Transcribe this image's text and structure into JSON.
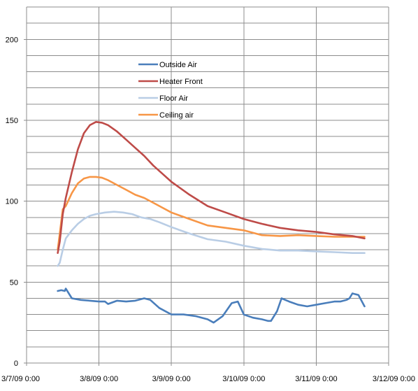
{
  "chart_data": {
    "type": "line",
    "title": "",
    "xlabel": "",
    "ylabel": "",
    "xlim": [
      "3/7/09 0:00",
      "3/12/09 0:00"
    ],
    "ylim": [
      0,
      220
    ],
    "y_ticks": [
      0,
      50,
      100,
      150,
      200
    ],
    "x_tick_labels": [
      "3/7/09 0:00",
      "3/8/09 0:00",
      "3/9/09 0:00",
      "3/10/09 0:00",
      "3/11/09 0:00",
      "3/12/09 0:00"
    ],
    "grid": true,
    "legend_position": "top-center",
    "series": [
      {
        "name": "Outside Air",
        "color": "#4a7ebb",
        "x": [
          "3/7/09 10:20",
          "3/7/09 11:30",
          "3/7/09 12:40",
          "3/7/09 13:00",
          "3/7/09 15:00",
          "3/7/09 18:00",
          "3/7/09 21:00",
          "3/8/09 0:00",
          "3/8/09 2:00",
          "3/8/09 3:00",
          "3/8/09 6:00",
          "3/8/09 9:00",
          "3/8/09 12:00",
          "3/8/09 15:00",
          "3/8/09 17:00",
          "3/8/09 20:00",
          "3/9/09 0:00",
          "3/9/09 4:00",
          "3/9/09 8:00",
          "3/9/09 12:00",
          "3/9/09 14:00",
          "3/9/09 17:00",
          "3/9/09 20:00",
          "3/9/09 22:00",
          "3/10/09 0:00",
          "3/10/09 3:00",
          "3/10/09 6:00",
          "3/10/09 8:00",
          "3/10/09 9:00",
          "3/10/09 11:00",
          "3/10/09 12:30",
          "3/10/09 15:00",
          "3/10/09 18:00",
          "3/10/09 21:00",
          "3/11/09 0:00",
          "3/11/09 3:00",
          "3/11/09 6:00",
          "3/11/09 8:00",
          "3/11/09 10:00",
          "3/11/09 11:00",
          "3/11/09 12:00",
          "3/11/09 14:00",
          "3/11/09 16:00"
        ],
        "values": [
          44.5,
          45,
          44.5,
          46,
          40,
          39,
          38.5,
          38,
          38,
          36.5,
          38.5,
          38,
          38.5,
          40,
          39,
          34,
          30,
          30,
          29,
          27,
          25,
          29,
          37,
          38,
          30,
          28,
          27,
          26,
          26,
          32,
          40,
          38,
          36,
          35,
          36,
          37,
          38,
          38,
          39,
          40,
          43,
          42,
          35
        ]
      },
      {
        "name": "Heater Front",
        "color": "#be4b48",
        "x": [
          "3/7/09 10:20",
          "3/7/09 11:00",
          "3/7/09 12:00",
          "3/7/09 13:00",
          "3/7/09 15:00",
          "3/7/09 17:00",
          "3/7/09 19:00",
          "3/7/09 21:00",
          "3/7/09 23:00",
          "3/8/09 1:00",
          "3/8/09 3:00",
          "3/8/09 6:00",
          "3/8/09 9:00",
          "3/8/09 12:00",
          "3/8/09 15:00",
          "3/8/09 18:00",
          "3/8/09 21:00",
          "3/9/09 0:00",
          "3/9/09 6:00",
          "3/9/09 12:00",
          "3/9/09 18:00",
          "3/10/09 0:00",
          "3/10/09 6:00",
          "3/10/09 12:00",
          "3/10/09 18:00",
          "3/11/09 0:00",
          "3/11/09 6:00",
          "3/11/09 12:00",
          "3/11/09 16:00"
        ],
        "values": [
          68,
          75,
          92,
          102,
          118,
          132,
          142,
          147,
          149,
          148.5,
          147,
          143,
          138,
          133,
          128,
          122,
          117,
          112,
          104,
          97,
          93,
          89,
          86,
          83.5,
          82,
          81,
          79.5,
          78.5,
          77
        ]
      },
      {
        "name": "Floor Air",
        "color": "#b9cde5",
        "x": [
          "3/7/09 10:20",
          "3/7/09 11:00",
          "3/7/09 12:00",
          "3/7/09 13:00",
          "3/7/09 15:00",
          "3/7/09 17:00",
          "3/7/09 19:00",
          "3/7/09 21:00",
          "3/7/09 23:00",
          "3/8/09 2:00",
          "3/8/09 5:00",
          "3/8/09 8:00",
          "3/8/09 11:00",
          "3/8/09 14:00",
          "3/8/09 17:00",
          "3/8/09 20:00",
          "3/9/09 0:00",
          "3/9/09 6:00",
          "3/9/09 12:00",
          "3/9/09 18:00",
          "3/10/09 0:00",
          "3/10/09 6:00",
          "3/10/09 12:00",
          "3/10/09 18:00",
          "3/11/09 0:00",
          "3/11/09 6:00",
          "3/11/09 12:00",
          "3/11/09 16:00"
        ],
        "values": [
          60,
          62,
          70,
          77,
          82,
          86,
          89,
          91,
          92,
          93,
          93.5,
          93,
          92,
          90,
          89,
          87,
          84,
          80,
          76.5,
          75,
          72.5,
          70.5,
          69.5,
          69.5,
          69,
          68.5,
          68,
          68
        ]
      },
      {
        "name": "Ceiling air",
        "color": "#f79646",
        "x": [
          "3/7/09 10:20",
          "3/7/09 11:00",
          "3/7/09 12:00",
          "3/7/09 13:00",
          "3/7/09 15:00",
          "3/7/09 17:00",
          "3/7/09 19:00",
          "3/7/09 21:00",
          "3/7/09 23:00",
          "3/8/09 1:00",
          "3/8/09 3:00",
          "3/8/09 6:00",
          "3/8/09 9:00",
          "3/8/09 12:00",
          "3/8/09 15:00",
          "3/8/09 18:00",
          "3/8/09 21:00",
          "3/9/09 0:00",
          "3/9/09 6:00",
          "3/9/09 12:00",
          "3/9/09 18:00",
          "3/10/09 0:00",
          "3/10/09 6:00",
          "3/10/09 12:00",
          "3/10/09 18:00",
          "3/11/09 0:00",
          "3/11/09 6:00",
          "3/11/09 12:00",
          "3/11/09 16:00"
        ],
        "values": [
          70,
          80,
          95,
          97,
          105,
          111,
          114,
          115,
          115,
          114.5,
          113,
          110,
          107,
          104,
          102,
          99,
          96,
          93,
          89,
          85,
          83.5,
          82,
          79,
          78.5,
          79,
          78.5,
          78,
          78,
          78
        ]
      }
    ]
  }
}
